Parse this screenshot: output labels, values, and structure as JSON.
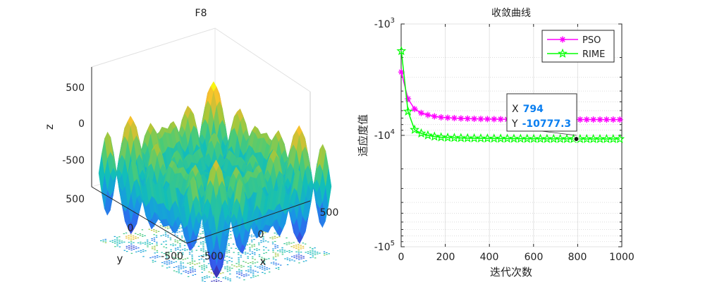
{
  "chart_data": [
    {
      "type": "surface",
      "title": "F8",
      "xlabel": "x",
      "ylabel": "y",
      "zlabel": "z",
      "xlim": [
        -500,
        500
      ],
      "ylim": [
        -500,
        500
      ],
      "zlim": [
        -800,
        800
      ],
      "x_ticks": [
        "-500",
        "0",
        "500"
      ],
      "y_ticks": [
        "-500",
        "0",
        "500"
      ],
      "z_ticks": [
        "500",
        "0",
        "-500"
      ],
      "colormap": "parula",
      "colors": {
        "low": "#3e26a8",
        "mid": "#20b2aa",
        "high": "#f9fb0e"
      }
    },
    {
      "type": "line",
      "title": "收敛曲线",
      "xlabel": "迭代次数",
      "ylabel": "适应度值",
      "yscale": "log (negative)",
      "xlim": [
        0,
        1000
      ],
      "ylim": [
        -100000,
        -1000
      ],
      "x_ticks": [
        "0",
        "200",
        "400",
        "600",
        "800",
        "1000"
      ],
      "y_ticks": [
        {
          "base": "-10",
          "exp": "3"
        },
        {
          "base": "-10",
          "exp": "4"
        },
        {
          "base": "-10",
          "exp": "5"
        }
      ],
      "legend": {
        "position": "top-right",
        "entries": [
          "PSO",
          "RIME"
        ]
      },
      "series": [
        {
          "name": "PSO",
          "color": "#ff00ff",
          "marker": "asterisk",
          "x": [
            1,
            31,
            61,
            91,
            121,
            151,
            181,
            211,
            241,
            271,
            301,
            331,
            361,
            391,
            421,
            451,
            481,
            511,
            541,
            571,
            601,
            631,
            661,
            691,
            721,
            751,
            781,
            811,
            841,
            871,
            901,
            931,
            961,
            991
          ],
          "y": [
            -2700,
            -4700,
            -5800,
            -6300,
            -6550,
            -6750,
            -6880,
            -6950,
            -7000,
            -7050,
            -7080,
            -7100,
            -7120,
            -7140,
            -7150,
            -7160,
            -7170,
            -7175,
            -7180,
            -7185,
            -7190,
            -7195,
            -7200,
            -7200,
            -7205,
            -7210,
            -7210,
            -7212,
            -7215,
            -7215,
            -7218,
            -7220,
            -7220,
            -7220
          ]
        },
        {
          "name": "RIME",
          "color": "#00ff00",
          "marker": "star",
          "x": [
            1,
            31,
            61,
            91,
            121,
            151,
            181,
            211,
            241,
            271,
            301,
            331,
            361,
            391,
            421,
            451,
            481,
            511,
            541,
            571,
            601,
            631,
            661,
            691,
            721,
            751,
            781,
            811,
            841,
            871,
            901,
            931,
            961,
            991
          ],
          "y": [
            -1750,
            -6100,
            -8900,
            -9600,
            -10000,
            -10250,
            -10400,
            -10480,
            -10530,
            -10570,
            -10600,
            -10620,
            -10640,
            -10660,
            -10680,
            -10690,
            -10700,
            -10710,
            -10720,
            -10730,
            -10740,
            -10745,
            -10750,
            -10755,
            -10760,
            -10765,
            -10770,
            -10775,
            -10777,
            -10777,
            -10778,
            -10778,
            -10778,
            -10778
          ]
        }
      ],
      "datatip": {
        "x": 794,
        "y": -10777.3,
        "x_label": "X",
        "y_label": "Y",
        "x_text": "794",
        "y_text": "-10777.3"
      }
    }
  ]
}
